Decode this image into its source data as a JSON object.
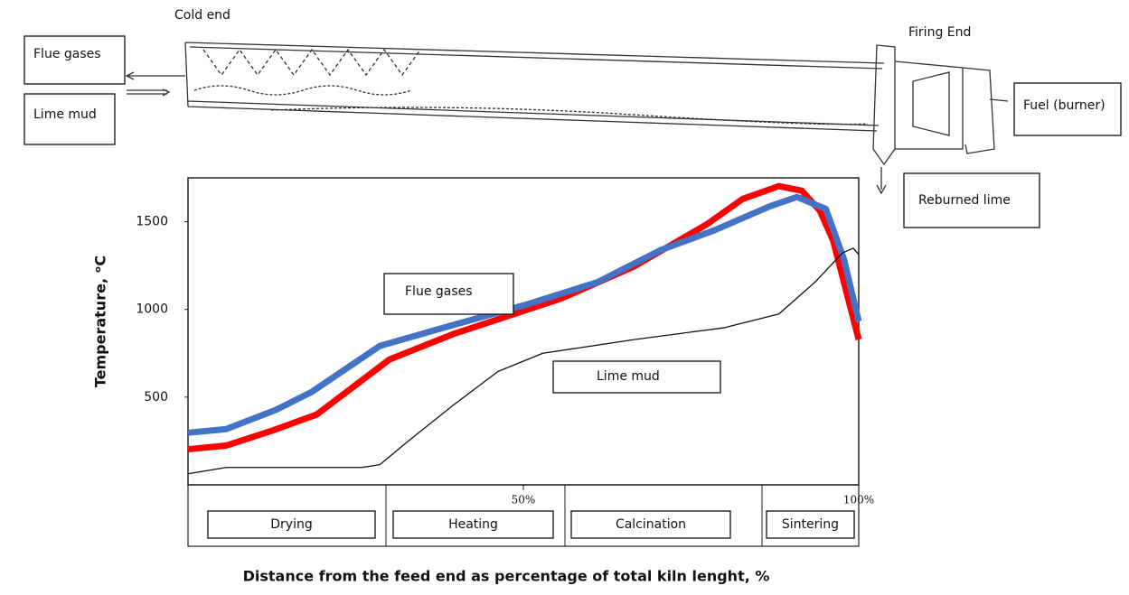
{
  "chart_data": {
    "type": "line",
    "ylabel": "Temperature, ᵒC",
    "xlabel": "Distance from the feed end as percentage of total kiln lenght, %",
    "xlim": [
      0,
      100
    ],
    "ylim": [
      0,
      1750
    ],
    "xticks": [
      {
        "value": 50,
        "label": "50%"
      },
      {
        "value": 100,
        "label": "100%"
      }
    ],
    "yticks": [
      500,
      1000,
      1500
    ],
    "series": [
      {
        "name": "Flue gases",
        "color": "#4472c4",
        "x": [
          0,
          5.7,
          13.1,
          18.5,
          28.6,
          39.5,
          50.3,
          61.1,
          70.5,
          78.6,
          86.8,
          90.8,
          95.1,
          97.8,
          100
        ],
        "values": [
          297,
          318,
          427,
          531,
          792,
          911,
          1026,
          1156,
          1339,
          1453,
          1589,
          1641,
          1573,
          1286,
          932
        ]
      },
      {
        "name": "Lime mud",
        "color": "#111111",
        "x": [
          0,
          5.7,
          12.4,
          25.9,
          28.6,
          32.7,
          39.5,
          46.2,
          52.9,
          66.5,
          80.0,
          88.1,
          93.5,
          97.6,
          99.2,
          100
        ],
        "values": [
          63,
          99,
          99,
          99,
          115,
          245,
          453,
          646,
          750,
          828,
          896,
          974,
          1156,
          1323,
          1349,
          1313
        ]
      },
      {
        "color": "#ff0000",
        "x": [
          0,
          5.7,
          12.4,
          19.2,
          30.0,
          39.5,
          55.7,
          66.5,
          77.3,
          82.7,
          88.1,
          91.5,
          94.2,
          96.2,
          100
        ],
        "values": [
          203,
          224,
          307,
          401,
          714,
          859,
          1063,
          1245,
          1484,
          1630,
          1703,
          1677,
          1563,
          1391,
          828
        ]
      }
    ],
    "zones": [
      "Drying",
      "Heating",
      "Calcination",
      "Sintering"
    ]
  },
  "diagram": {
    "cold_end": "Cold end",
    "firing_end": "Firing End",
    "fuel": "Fuel (burner)",
    "reburned_lime": "Reburned lime"
  }
}
